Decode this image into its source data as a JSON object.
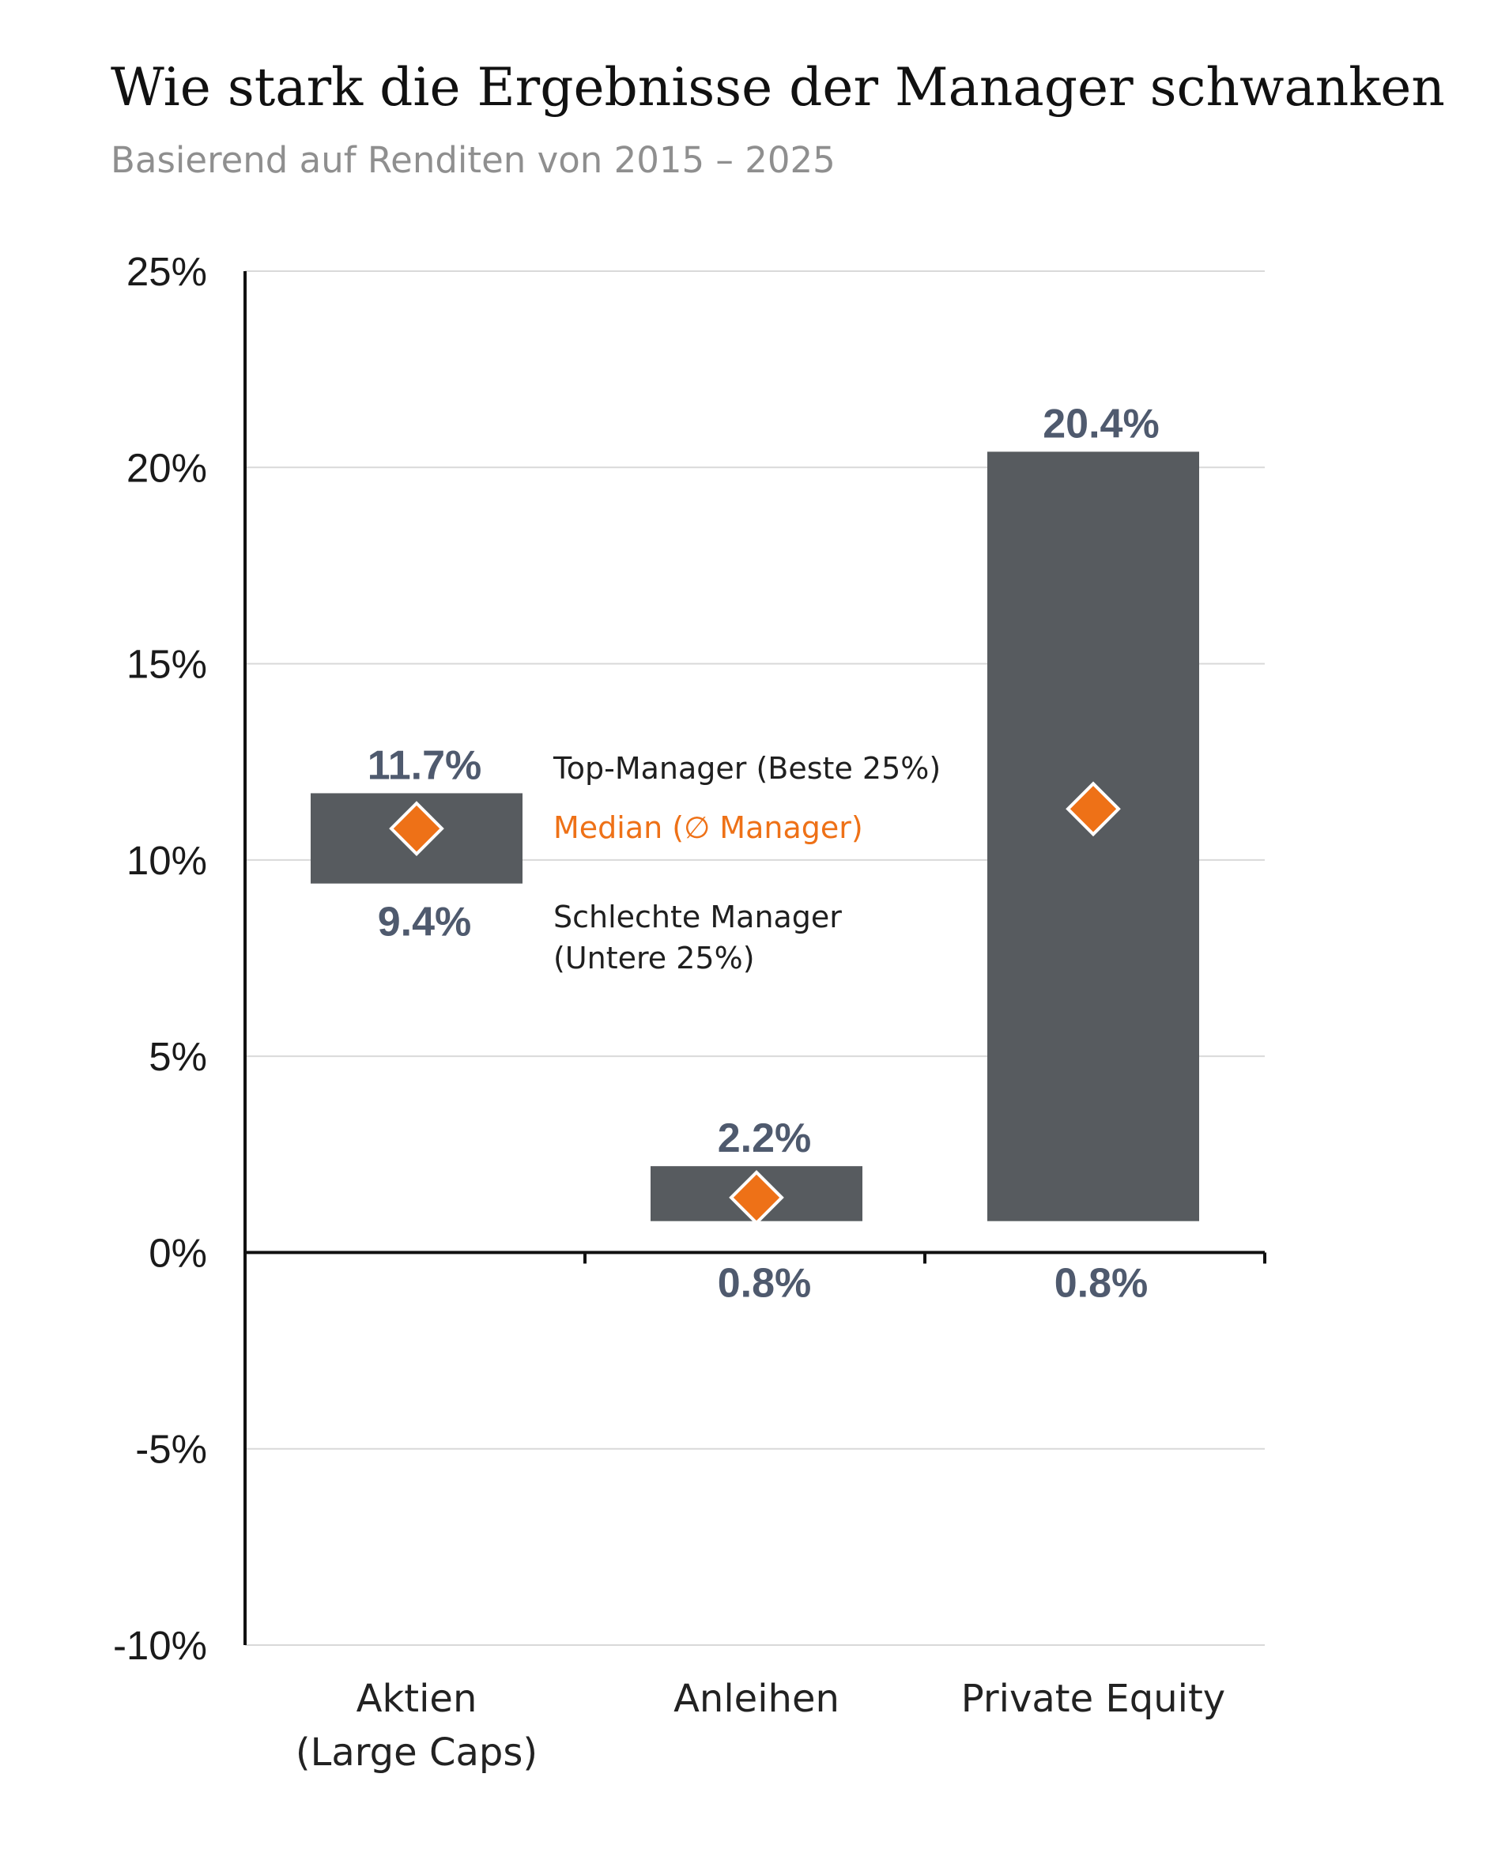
{
  "title": "Wie stark die Ergebnisse der Manager schwanken",
  "subtitle": "Basierend auf Renditen von 2015 – 2025",
  "chart_data": {
    "type": "range-bar",
    "ylim": [
      -10,
      25
    ],
    "yticks": [
      25,
      20,
      15,
      10,
      5,
      0,
      -5,
      -10
    ],
    "ytick_labels": [
      "25%",
      "20%",
      "15%",
      "10%",
      "5%",
      "0%",
      "-5%",
      "-10%"
    ],
    "grid": true,
    "categories": [
      {
        "label_lines": [
          "Aktien",
          "(Large Caps)"
        ],
        "top": 11.7,
        "bottom": 9.4,
        "median": 10.8,
        "top_label": "11.7%",
        "bottom_label": "9.4%"
      },
      {
        "label_lines": [
          "Anleihen"
        ],
        "top": 2.2,
        "bottom": 0.8,
        "median": 1.4,
        "top_label": "2.2%",
        "bottom_label": "0.8%"
      },
      {
        "label_lines": [
          "Private Equity"
        ],
        "top": 20.4,
        "bottom": 0.8,
        "median": 11.3,
        "top_label": "20.4%",
        "bottom_label": "0.8%"
      }
    ],
    "legend": {
      "top": "Top-Manager (Beste 25%)",
      "median": "Median (∅ Manager)",
      "bottom_lines": [
        "Schlechte Manager",
        "(Untere 25%)"
      ]
    },
    "colors": {
      "bar": "#575b5f",
      "median": "#ee7117",
      "value_label": "#4f5a6e",
      "grid": "#d9d9d9",
      "axis": "#111111"
    }
  }
}
